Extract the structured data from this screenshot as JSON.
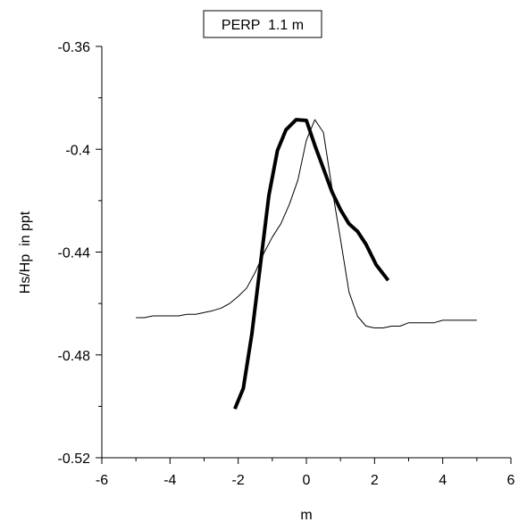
{
  "chart_data": {
    "type": "line",
    "title": "PERP  1.1 m",
    "xlabel": "m",
    "ylabel": "Hs/Hp  in ppt",
    "xlim": [
      -6,
      6
    ],
    "ylim": [
      -0.52,
      -0.36
    ],
    "grid": false,
    "legend": "none",
    "x_ticks": [
      -6,
      -4,
      -2,
      0,
      2,
      4,
      6
    ],
    "x_tick_labels": [
      "-6",
      "-4",
      "-2",
      "0",
      "2",
      "4",
      "6"
    ],
    "y_ticks": [
      -0.36,
      -0.4,
      -0.44,
      -0.48,
      -0.52
    ],
    "y_tick_labels": [
      "-0.36",
      "-0.4",
      "-0.44",
      "-0.48",
      "-0.52"
    ],
    "series": [
      {
        "style": "thin",
        "color": "#000000",
        "points": [
          [
            -5.0,
            -0.4655
          ],
          [
            -4.75,
            -0.4655
          ],
          [
            -4.5,
            -0.4648
          ],
          [
            -4.25,
            -0.4648
          ],
          [
            -4.0,
            -0.4648
          ],
          [
            -3.75,
            -0.4648
          ],
          [
            -3.5,
            -0.4642
          ],
          [
            -3.25,
            -0.4642
          ],
          [
            -3.0,
            -0.4635
          ],
          [
            -2.75,
            -0.4628
          ],
          [
            -2.5,
            -0.4618
          ],
          [
            -2.25,
            -0.46
          ],
          [
            -2.0,
            -0.4572
          ],
          [
            -1.75,
            -0.454
          ],
          [
            -1.5,
            -0.4478
          ],
          [
            -1.25,
            -0.4405
          ],
          [
            -1.0,
            -0.4342
          ],
          [
            -0.75,
            -0.429
          ],
          [
            -0.5,
            -0.4215
          ],
          [
            -0.25,
            -0.412
          ],
          [
            0.0,
            -0.3965
          ],
          [
            0.25,
            -0.3885
          ],
          [
            0.5,
            -0.3935
          ],
          [
            0.75,
            -0.415
          ],
          [
            1.0,
            -0.435
          ],
          [
            1.25,
            -0.4555
          ],
          [
            1.5,
            -0.465
          ],
          [
            1.75,
            -0.4688
          ],
          [
            2.0,
            -0.4695
          ],
          [
            2.25,
            -0.4695
          ],
          [
            2.5,
            -0.4688
          ],
          [
            2.75,
            -0.4688
          ],
          [
            3.0,
            -0.4675
          ],
          [
            3.25,
            -0.4675
          ],
          [
            3.5,
            -0.4675
          ],
          [
            3.75,
            -0.4675
          ],
          [
            4.0,
            -0.4665
          ],
          [
            4.25,
            -0.4665
          ],
          [
            4.5,
            -0.4665
          ],
          [
            4.75,
            -0.4665
          ],
          [
            5.0,
            -0.4665
          ]
        ]
      },
      {
        "style": "thick",
        "color": "#000000",
        "points": [
          [
            -2.1,
            -0.501
          ],
          [
            -1.85,
            -0.493
          ],
          [
            -1.6,
            -0.472
          ],
          [
            -1.35,
            -0.445
          ],
          [
            -1.1,
            -0.418
          ],
          [
            -0.85,
            -0.4005
          ],
          [
            -0.6,
            -0.3925
          ],
          [
            -0.3,
            -0.3885
          ],
          [
            0.0,
            -0.3888
          ],
          [
            0.25,
            -0.3985
          ],
          [
            0.5,
            -0.4075
          ],
          [
            0.75,
            -0.4165
          ],
          [
            1.0,
            -0.4235
          ],
          [
            1.25,
            -0.429
          ],
          [
            1.5,
            -0.432
          ],
          [
            1.75,
            -0.437
          ],
          [
            2.05,
            -0.445
          ],
          [
            2.4,
            -0.451
          ]
        ]
      }
    ]
  }
}
